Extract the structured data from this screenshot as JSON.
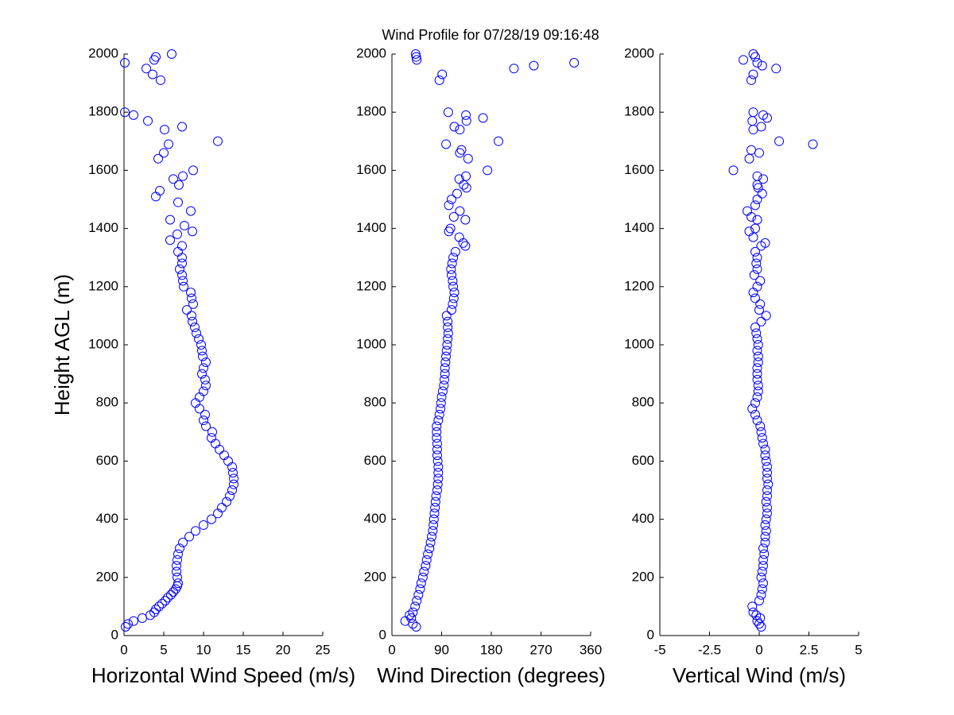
{
  "chart_data": [
    {
      "type": "scatter",
      "title": "Wind Profile for  07/28/19 09:16:48",
      "ylabel": "Height AGL (m)",
      "xlabel": "Horizontal Wind Speed (m/s)",
      "color": "#0000ff",
      "xlim": [
        0,
        25
      ],
      "xticks": [
        0,
        5,
        10,
        15,
        20,
        25
      ],
      "ylim": [
        0,
        2000
      ],
      "yticks": [
        0,
        200,
        400,
        600,
        800,
        1000,
        1200,
        1400,
        1600,
        1800,
        2000
      ],
      "x": [
        0.2,
        0.5,
        1.2,
        2.3,
        3.3,
        3.8,
        4.0,
        4.4,
        4.8,
        5.2,
        5.5,
        5.9,
        6.2,
        6.5,
        6.7,
        6.8,
        6.7,
        6.6,
        6.6,
        6.7,
        6.8,
        7.0,
        7.4,
        8.2,
        9.0,
        10.0,
        11.0,
        11.8,
        12.3,
        12.9,
        13.3,
        13.6,
        13.8,
        13.8,
        13.7,
        13.6,
        13.1,
        12.6,
        12.0,
        11.5,
        11.0,
        11.1,
        10.3,
        10.0,
        10.2,
        9.5,
        9.0,
        9.5,
        10.0,
        10.3,
        10.2,
        9.8,
        10.0,
        10.3,
        9.9,
        9.8,
        9.7,
        9.4,
        9.1,
        8.9,
        8.6,
        8.5,
        7.9,
        8.7,
        8.5,
        8.4,
        7.5,
        7.4,
        7.3,
        7.0,
        7.3,
        7.3,
        6.8,
        7.3,
        5.8,
        6.7,
        8.6,
        7.6,
        5.8,
        8.4,
        6.8,
        4.0,
        4.5,
        6.9,
        6.2,
        7.4,
        8.7,
        4.3,
        5.0,
        5.6,
        11.8,
        5.1,
        7.3,
        3.0,
        1.2,
        0.1,
        4.6,
        3.6,
        2.8,
        0.1,
        3.8,
        4.0,
        6.0
      ],
      "y": [
        30,
        40,
        50,
        60,
        70,
        80,
        90,
        100,
        110,
        120,
        130,
        140,
        150,
        160,
        170,
        180,
        200,
        220,
        240,
        260,
        280,
        300,
        320,
        340,
        360,
        380,
        400,
        420,
        440,
        460,
        480,
        500,
        520,
        540,
        560,
        580,
        600,
        620,
        640,
        660,
        680,
        700,
        720,
        740,
        760,
        780,
        800,
        820,
        840,
        860,
        880,
        900,
        920,
        940,
        960,
        980,
        1000,
        1020,
        1040,
        1060,
        1080,
        1100,
        1120,
        1140,
        1160,
        1180,
        1200,
        1220,
        1240,
        1260,
        1280,
        1300,
        1320,
        1340,
        1360,
        1380,
        1390,
        1410,
        1430,
        1460,
        1490,
        1510,
        1530,
        1550,
        1570,
        1580,
        1600,
        1640,
        1660,
        1690,
        1700,
        1740,
        1750,
        1770,
        1790,
        1800,
        1910,
        1930,
        1950,
        1970,
        1980,
        1990,
        2000
      ]
    },
    {
      "type": "scatter",
      "xlabel": "Wind Direction (degrees)",
      "color": "#0000ff",
      "xlim": [
        0,
        360
      ],
      "xticks": [
        0,
        90,
        180,
        270,
        360
      ],
      "ylim": [
        0,
        2000
      ],
      "yticks": [
        0,
        200,
        400,
        600,
        800,
        1000,
        1200,
        1400,
        1600,
        1800,
        2000
      ],
      "x": [
        44,
        38,
        24,
        35,
        32,
        38,
        42,
        45,
        48,
        51,
        53,
        56,
        58,
        61,
        63,
        65,
        68,
        70,
        72,
        74,
        75,
        76,
        77,
        78,
        79,
        80,
        82,
        83,
        84,
        84,
        84,
        83,
        82,
        82,
        82,
        81,
        81,
        81,
        84,
        86,
        88,
        89,
        90,
        92,
        94,
        95,
        96,
        96,
        97,
        98,
        99,
        100,
        101,
        102,
        101,
        101,
        99,
        108,
        110,
        112,
        113,
        111,
        110,
        108,
        107,
        109,
        111,
        115,
        133,
        129,
        122,
        103,
        106,
        133,
        112,
        123,
        103,
        108,
        118,
        135,
        130,
        122,
        134,
        173,
        138,
        123,
        126,
        98,
        193,
        123,
        113,
        135,
        165,
        134,
        102,
        86,
        91,
        221,
        257,
        330,
        45,
        44,
        43
      ],
      "y": [
        30,
        40,
        50,
        60,
        70,
        80,
        100,
        120,
        140,
        160,
        180,
        200,
        220,
        240,
        260,
        280,
        300,
        320,
        340,
        360,
        380,
        400,
        420,
        440,
        460,
        480,
        500,
        520,
        540,
        560,
        580,
        600,
        620,
        640,
        660,
        680,
        700,
        720,
        740,
        760,
        780,
        800,
        820,
        840,
        860,
        880,
        900,
        920,
        940,
        960,
        980,
        1000,
        1020,
        1040,
        1060,
        1080,
        1100,
        1120,
        1140,
        1160,
        1180,
        1200,
        1220,
        1240,
        1260,
        1280,
        1300,
        1320,
        1340,
        1350,
        1370,
        1390,
        1400,
        1430,
        1440,
        1460,
        1480,
        1500,
        1520,
        1540,
        1550,
        1570,
        1580,
        1600,
        1640,
        1660,
        1670,
        1690,
        1700,
        1740,
        1750,
        1770,
        1780,
        1790,
        1800,
        1910,
        1930,
        1950,
        1960,
        1970,
        1980,
        1990,
        2000
      ]
    },
    {
      "type": "scatter",
      "xlabel": "Vertical Wind (m/s)",
      "color": "#0000ff",
      "xlim": [
        -5,
        5
      ],
      "xticks": [
        -5,
        -2.5,
        0,
        2.5,
        5
      ],
      "ylim": [
        0,
        2000
      ],
      "yticks": [
        0,
        200,
        400,
        600,
        800,
        1000,
        1200,
        1400,
        1600,
        1800,
        2000
      ],
      "x": [
        0.1,
        0.0,
        -0.1,
        0.05,
        -0.15,
        -0.3,
        -0.35,
        0.0,
        0.1,
        0.15,
        0.2,
        0.1,
        0.15,
        0.2,
        0.2,
        0.25,
        0.2,
        0.3,
        0.3,
        0.35,
        0.3,
        0.35,
        0.4,
        0.4,
        0.35,
        0.4,
        0.4,
        0.45,
        0.4,
        0.4,
        0.4,
        0.35,
        0.3,
        0.3,
        0.2,
        0.15,
        0.1,
        0.05,
        -0.1,
        -0.2,
        -0.35,
        -0.2,
        -0.1,
        -0.05,
        -0.05,
        -0.1,
        -0.1,
        -0.1,
        -0.05,
        -0.05,
        -0.1,
        -0.05,
        -0.1,
        -0.15,
        -0.2,
        0.1,
        0.35,
        0.0,
        0.05,
        -0.2,
        -0.3,
        -0.1,
        0.05,
        -0.25,
        -0.1,
        -0.15,
        -0.1,
        -0.2,
        0.1,
        0.3,
        -0.3,
        -0.5,
        -0.2,
        -0.1,
        -0.4,
        -0.6,
        -0.2,
        -0.1,
        0.15,
        -0.05,
        -0.1,
        0.2,
        -0.1,
        -1.3,
        -0.5,
        0.0,
        -0.4,
        2.7,
        1.0,
        -0.3,
        0.1,
        -0.35,
        0.4,
        0.2,
        -0.3,
        -0.4,
        -0.3,
        0.85,
        0.15,
        -0.1,
        -0.8,
        -0.2,
        -0.3
      ],
      "y": [
        30,
        40,
        50,
        60,
        70,
        80,
        100,
        120,
        140,
        160,
        180,
        200,
        220,
        240,
        260,
        280,
        300,
        320,
        340,
        360,
        380,
        400,
        420,
        440,
        460,
        480,
        500,
        520,
        540,
        560,
        580,
        600,
        620,
        640,
        660,
        680,
        700,
        720,
        740,
        760,
        780,
        800,
        820,
        840,
        860,
        880,
        900,
        920,
        940,
        960,
        980,
        1000,
        1020,
        1040,
        1060,
        1080,
        1100,
        1120,
        1140,
        1160,
        1180,
        1200,
        1220,
        1240,
        1260,
        1280,
        1300,
        1320,
        1340,
        1350,
        1370,
        1390,
        1400,
        1430,
        1440,
        1460,
        1480,
        1500,
        1520,
        1540,
        1550,
        1570,
        1580,
        1600,
        1640,
        1660,
        1670,
        1690,
        1700,
        1740,
        1750,
        1770,
        1780,
        1790,
        1800,
        1910,
        1930,
        1950,
        1960,
        1970,
        1980,
        1990,
        2000
      ]
    }
  ]
}
